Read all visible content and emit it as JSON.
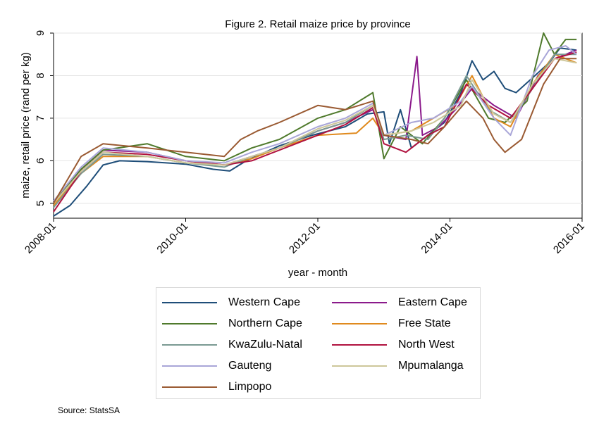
{
  "source_note": "Source: StatsSA",
  "chart_data": {
    "type": "line",
    "title": "Figure 2. Retail maize price by province",
    "xlabel": "year - month",
    "ylabel": "maize, retail price (rand per kg)",
    "x_range": [
      "2008-01",
      "2016-01"
    ],
    "ylim": [
      4.65,
      9
    ],
    "yticks": [
      "5",
      "6",
      "7",
      "8",
      "9"
    ],
    "xticks": [
      "2008-01",
      "2010-01",
      "2012-01",
      "2014-01",
      "2016-01"
    ],
    "grid": "horizontal",
    "legend_position": "bottom",
    "series": [
      {
        "name": "Western Cape",
        "color": "#1f4e79",
        "points": [
          [
            "2008-01",
            4.7
          ],
          [
            "2008-04",
            4.95
          ],
          [
            "2008-07",
            5.4
          ],
          [
            "2008-10",
            5.9
          ],
          [
            "2009-01",
            6.0
          ],
          [
            "2009-06",
            5.98
          ],
          [
            "2010-01",
            5.92
          ],
          [
            "2010-06",
            5.8
          ],
          [
            "2010-09",
            5.76
          ],
          [
            "2010-12",
            6.0
          ],
          [
            "2011-06",
            6.35
          ],
          [
            "2011-12",
            6.6
          ],
          [
            "2012-06",
            6.8
          ],
          [
            "2012-10",
            7.1
          ],
          [
            "2013-01",
            7.15
          ],
          [
            "2013-02",
            6.4
          ],
          [
            "2013-04",
            7.2
          ],
          [
            "2013-06",
            6.3
          ],
          [
            "2013-09",
            6.6
          ],
          [
            "2013-12",
            6.9
          ],
          [
            "2014-03",
            7.6
          ],
          [
            "2014-05",
            8.35
          ],
          [
            "2014-07",
            7.9
          ],
          [
            "2014-09",
            8.1
          ],
          [
            "2014-11",
            7.7
          ],
          [
            "2015-01",
            7.6
          ],
          [
            "2015-04",
            7.95
          ],
          [
            "2015-07",
            8.3
          ],
          [
            "2015-09",
            8.65
          ],
          [
            "2015-12",
            8.6
          ]
        ]
      },
      {
        "name": "Eastern Cape",
        "color": "#8b1a8b",
        "points": [
          [
            "2008-01",
            5.05
          ],
          [
            "2008-06",
            5.8
          ],
          [
            "2008-10",
            6.25
          ],
          [
            "2009-06",
            6.2
          ],
          [
            "2010-01",
            6.0
          ],
          [
            "2010-08",
            5.9
          ],
          [
            "2011-01",
            6.1
          ],
          [
            "2011-06",
            6.3
          ],
          [
            "2012-01",
            6.7
          ],
          [
            "2012-06",
            6.9
          ],
          [
            "2012-11",
            7.2
          ],
          [
            "2013-01",
            6.6
          ],
          [
            "2013-05",
            6.5
          ],
          [
            "2013-07",
            8.45
          ],
          [
            "2013-08",
            6.6
          ],
          [
            "2013-11",
            6.8
          ],
          [
            "2014-02",
            7.2
          ],
          [
            "2014-05",
            7.7
          ],
          [
            "2014-09",
            7.3
          ],
          [
            "2015-01",
            7.0
          ],
          [
            "2015-05",
            8.0
          ],
          [
            "2015-08",
            8.4
          ],
          [
            "2015-12",
            8.6
          ]
        ]
      },
      {
        "name": "Northern Cape",
        "color": "#4f7a2c",
        "points": [
          [
            "2008-01",
            5.0
          ],
          [
            "2008-06",
            5.8
          ],
          [
            "2008-10",
            6.25
          ],
          [
            "2009-06",
            6.4
          ],
          [
            "2010-01",
            6.1
          ],
          [
            "2010-08",
            6.0
          ],
          [
            "2011-01",
            6.3
          ],
          [
            "2011-06",
            6.5
          ],
          [
            "2012-01",
            7.0
          ],
          [
            "2012-06",
            7.2
          ],
          [
            "2012-11",
            7.6
          ],
          [
            "2013-01",
            6.05
          ],
          [
            "2013-04",
            6.8
          ],
          [
            "2013-08",
            6.4
          ],
          [
            "2013-12",
            7.0
          ],
          [
            "2014-04",
            7.9
          ],
          [
            "2014-08",
            7.0
          ],
          [
            "2014-11",
            6.9
          ],
          [
            "2015-03",
            7.4
          ],
          [
            "2015-06",
            9.0
          ],
          [
            "2015-08",
            8.5
          ],
          [
            "2015-10",
            8.85
          ],
          [
            "2015-12",
            8.85
          ]
        ]
      },
      {
        "name": "Free State",
        "color": "#e08a1e",
        "points": [
          [
            "2008-01",
            4.95
          ],
          [
            "2008-06",
            5.7
          ],
          [
            "2008-10",
            6.1
          ],
          [
            "2009-06",
            6.1
          ],
          [
            "2010-01",
            5.95
          ],
          [
            "2010-08",
            5.9
          ],
          [
            "2011-01",
            6.05
          ],
          [
            "2011-06",
            6.3
          ],
          [
            "2012-01",
            6.6
          ],
          [
            "2012-08",
            6.65
          ],
          [
            "2012-11",
            7.0
          ],
          [
            "2013-01",
            6.6
          ],
          [
            "2013-06",
            6.7
          ],
          [
            "2013-10",
            7.0
          ],
          [
            "2014-02",
            7.3
          ],
          [
            "2014-05",
            8.0
          ],
          [
            "2014-09",
            7.0
          ],
          [
            "2014-12",
            6.8
          ],
          [
            "2015-04",
            7.8
          ],
          [
            "2015-08",
            8.5
          ],
          [
            "2015-12",
            8.3
          ]
        ]
      },
      {
        "name": "KwaZulu-Natal",
        "color": "#7a9a92",
        "points": [
          [
            "2008-01",
            4.9
          ],
          [
            "2008-06",
            5.7
          ],
          [
            "2008-10",
            6.15
          ],
          [
            "2009-06",
            6.1
          ],
          [
            "2010-01",
            5.95
          ],
          [
            "2010-08",
            5.85
          ],
          [
            "2011-01",
            6.1
          ],
          [
            "2011-06",
            6.3
          ],
          [
            "2012-01",
            6.7
          ],
          [
            "2012-06",
            6.9
          ],
          [
            "2012-11",
            7.3
          ],
          [
            "2013-01",
            6.5
          ],
          [
            "2013-05",
            6.6
          ],
          [
            "2013-09",
            6.5
          ],
          [
            "2013-12",
            7.0
          ],
          [
            "2014-04",
            8.0
          ],
          [
            "2014-08",
            7.2
          ],
          [
            "2014-12",
            6.9
          ],
          [
            "2015-04",
            7.7
          ],
          [
            "2015-08",
            8.5
          ],
          [
            "2015-12",
            8.5
          ]
        ]
      },
      {
        "name": "North West",
        "color": "#b0123f",
        "points": [
          [
            "2008-01",
            4.8
          ],
          [
            "2008-06",
            5.75
          ],
          [
            "2008-10",
            6.2
          ],
          [
            "2009-06",
            6.15
          ],
          [
            "2010-01",
            6.0
          ],
          [
            "2010-08",
            5.9
          ],
          [
            "2011-01",
            6.0
          ],
          [
            "2011-06",
            6.25
          ],
          [
            "2012-01",
            6.6
          ],
          [
            "2012-06",
            6.85
          ],
          [
            "2012-11",
            7.25
          ],
          [
            "2013-01",
            6.4
          ],
          [
            "2013-05",
            6.2
          ],
          [
            "2013-09",
            6.6
          ],
          [
            "2013-12",
            6.8
          ],
          [
            "2014-04",
            7.8
          ],
          [
            "2014-08",
            7.3
          ],
          [
            "2014-12",
            7.0
          ],
          [
            "2015-04",
            7.7
          ],
          [
            "2015-08",
            8.4
          ],
          [
            "2015-12",
            8.55
          ]
        ]
      },
      {
        "name": "Gauteng",
        "color": "#a9a6d8",
        "points": [
          [
            "2008-01",
            5.05
          ],
          [
            "2008-06",
            5.85
          ],
          [
            "2008-10",
            6.3
          ],
          [
            "2009-06",
            6.2
          ],
          [
            "2010-01",
            6.0
          ],
          [
            "2010-08",
            5.95
          ],
          [
            "2011-01",
            6.2
          ],
          [
            "2011-06",
            6.4
          ],
          [
            "2012-01",
            6.8
          ],
          [
            "2012-06",
            7.0
          ],
          [
            "2012-11",
            7.35
          ],
          [
            "2013-01",
            6.6
          ],
          [
            "2013-06",
            6.9
          ],
          [
            "2013-10",
            7.0
          ],
          [
            "2014-03",
            7.4
          ],
          [
            "2014-05",
            7.75
          ],
          [
            "2014-09",
            7.0
          ],
          [
            "2014-12",
            6.6
          ],
          [
            "2015-04",
            8.0
          ],
          [
            "2015-07",
            8.6
          ],
          [
            "2015-10",
            8.7
          ],
          [
            "2015-12",
            8.5
          ]
        ]
      },
      {
        "name": "Mpumalanga",
        "color": "#cdc79a",
        "points": [
          [
            "2008-01",
            5.0
          ],
          [
            "2008-06",
            5.75
          ],
          [
            "2008-10",
            6.2
          ],
          [
            "2009-06",
            6.1
          ],
          [
            "2010-01",
            5.95
          ],
          [
            "2010-08",
            5.9
          ],
          [
            "2011-01",
            6.1
          ],
          [
            "2011-06",
            6.3
          ],
          [
            "2012-01",
            6.75
          ],
          [
            "2012-06",
            6.95
          ],
          [
            "2012-11",
            7.3
          ],
          [
            "2013-01",
            6.6
          ],
          [
            "2013-06",
            6.7
          ],
          [
            "2013-10",
            6.9
          ],
          [
            "2014-03",
            7.3
          ],
          [
            "2014-05",
            7.9
          ],
          [
            "2014-09",
            7.1
          ],
          [
            "2014-12",
            6.9
          ],
          [
            "2015-04",
            7.8
          ],
          [
            "2015-08",
            8.4
          ],
          [
            "2015-12",
            8.3
          ]
        ]
      },
      {
        "name": "Limpopo",
        "color": "#9a5a32",
        "points": [
          [
            "2008-01",
            5.0
          ],
          [
            "2008-06",
            6.1
          ],
          [
            "2008-10",
            6.4
          ],
          [
            "2009-06",
            6.3
          ],
          [
            "2010-01",
            6.2
          ],
          [
            "2010-08",
            6.1
          ],
          [
            "2010-11",
            6.5
          ],
          [
            "2011-02",
            6.7
          ],
          [
            "2011-06",
            6.9
          ],
          [
            "2012-01",
            7.3
          ],
          [
            "2012-06",
            7.2
          ],
          [
            "2012-11",
            7.4
          ],
          [
            "2013-01",
            6.6
          ],
          [
            "2013-06",
            6.5
          ],
          [
            "2013-09",
            6.4
          ],
          [
            "2013-12",
            6.8
          ],
          [
            "2014-04",
            7.4
          ],
          [
            "2014-07",
            7.0
          ],
          [
            "2014-09",
            6.5
          ],
          [
            "2014-11",
            6.2
          ],
          [
            "2015-02",
            6.5
          ],
          [
            "2015-06",
            7.8
          ],
          [
            "2015-09",
            8.4
          ],
          [
            "2015-12",
            8.4
          ]
        ]
      }
    ]
  }
}
